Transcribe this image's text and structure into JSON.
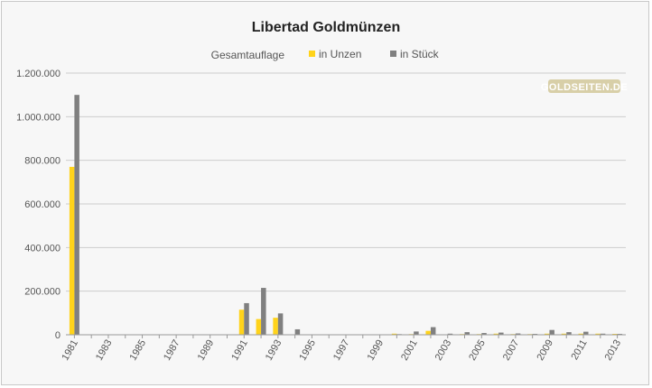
{
  "watermark": "GOLDSEITEN.DE",
  "colors": {
    "series_unzen": "#FFD31A",
    "series_stueck": "#808080",
    "grid": "#cccccc",
    "axis": "#999999",
    "background": "#f7f7f7",
    "watermark_bg": "#d8cfa8"
  },
  "chart_data": {
    "type": "bar",
    "title": "Libertad Goldmünzen",
    "legend_title": "Gesamtauflage",
    "legend_position": "top-center",
    "grid": true,
    "xlabel": "",
    "ylabel": "",
    "ylim": [
      0,
      1200000
    ],
    "yticks": [
      0,
      200000,
      400000,
      600000,
      800000,
      1000000,
      1200000
    ],
    "ytick_labels": [
      "0",
      "200.000",
      "400.000",
      "600.000",
      "800.000",
      "1.000.000",
      "1.200.000"
    ],
    "categories": [
      "1981",
      "1982",
      "1983",
      "1984",
      "1985",
      "1986",
      "1987",
      "1988",
      "1989",
      "1990",
      "1991",
      "1992",
      "1993",
      "1994",
      "1995",
      "1996",
      "1997",
      "1998",
      "1999",
      "2000",
      "2001",
      "2002",
      "2003",
      "2004",
      "2005",
      "2006",
      "2007",
      "2008",
      "2009",
      "2010",
      "2011",
      "2012",
      "2013"
    ],
    "xtick_labels": [
      "1981",
      "1983",
      "1985",
      "1987",
      "1989",
      "1991",
      "1993",
      "1995",
      "1997",
      "1999",
      "2001",
      "2003",
      "2005",
      "2007",
      "2009",
      "2011",
      "2013"
    ],
    "series": [
      {
        "name": "in Unzen",
        "values": [
          770000,
          0,
          0,
          0,
          0,
          0,
          0,
          0,
          0,
          0,
          115000,
          72000,
          78000,
          0,
          0,
          0,
          0,
          0,
          0,
          5000,
          3000,
          18000,
          2000,
          3000,
          3000,
          5000,
          3000,
          3000,
          5000,
          5000,
          5000,
          5000,
          4000
        ]
      },
      {
        "name": "in Stück",
        "values": [
          1100000,
          0,
          0,
          0,
          0,
          0,
          0,
          0,
          0,
          0,
          145000,
          215000,
          98000,
          25000,
          0,
          0,
          0,
          0,
          0,
          3000,
          15000,
          35000,
          5000,
          12000,
          8000,
          10000,
          6000,
          4000,
          22000,
          12000,
          14000,
          5000,
          4000
        ]
      }
    ]
  }
}
